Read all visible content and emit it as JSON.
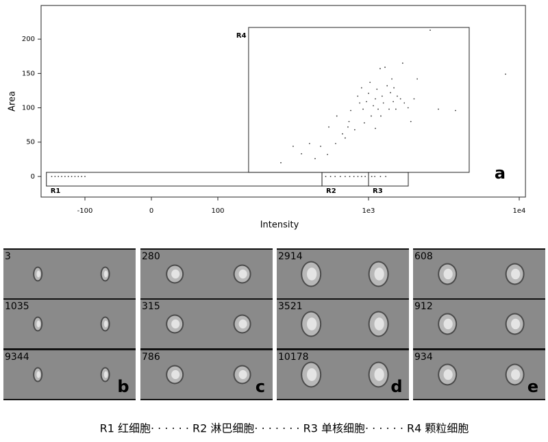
{
  "chart_data": {
    "type": "scatter",
    "xlabel": "Intensity",
    "ylabel": "Area",
    "panel_label": "a",
    "xscale": "biexponential",
    "xlim": [
      -166,
      11000
    ],
    "ylim": [
      -30,
      249
    ],
    "xticks": [
      -100,
      0,
      100,
      {
        "value": 1000,
        "label": "1e3"
      },
      {
        "value": 10000,
        "label": "1e4"
      }
    ],
    "yticks": [
      0,
      50,
      100,
      150,
      200
    ],
    "color": "#333333",
    "x": [
      2565,
      8110,
      262,
      316,
      359,
      406,
      442,
      481,
      534,
      605,
      672,
      730,
      545,
      616,
      700,
      742,
      762,
      810,
      848,
      874,
      899,
      920,
      938,
      969,
      1000,
      1023,
      1042,
      1076,
      1110,
      1110,
      1137,
      1158,
      1194,
      1207,
      1231,
      1255,
      1286,
      1329,
      1369,
      1398,
      1428,
      1459,
      1474,
      1518,
      1551,
      1630,
      1685,
      1728,
      1830,
      1909,
      2005,
      2105,
      2907,
      3776,
      -150,
      -145,
      -140,
      -135,
      -130,
      -125,
      -120,
      -115,
      -110,
      -105,
      -100,
      520,
      560,
      600,
      650,
      700,
      750,
      800,
      850,
      900,
      950,
      1050,
      1100,
      1200,
      1300
    ],
    "values": [
      213,
      149,
      20,
      44,
      33,
      48,
      26,
      44,
      32,
      48,
      62,
      72,
      72,
      88,
      56,
      80,
      96,
      68,
      117,
      107,
      129,
      98,
      78,
      109,
      121,
      137,
      88,
      103,
      70,
      113,
      127,
      98,
      157,
      88,
      117,
      107,
      159,
      132,
      98,
      122,
      142,
      109,
      129,
      98,
      117,
      113,
      165,
      107,
      100,
      80,
      113,
      142,
      98,
      96,
      0,
      0,
      0,
      0,
      0,
      0,
      0,
      0,
      0,
      0,
      0,
      0,
      0,
      0,
      0,
      0,
      0,
      0,
      0,
      0,
      0,
      0,
      0,
      0,
      0
    ],
    "regions": [
      {
        "label": "R1",
        "x": [
          -158,
          491
        ],
        "y": [
          -14,
          6
        ]
      },
      {
        "label": "R2",
        "x": [
          491,
          1000
        ],
        "y": [
          -14,
          6
        ]
      },
      {
        "label": "R3",
        "x": [
          1000,
          1835
        ],
        "y": [
          -14,
          6
        ]
      },
      {
        "label": "R4",
        "x": [
          160,
          4656
        ],
        "y": [
          6,
          217
        ]
      }
    ]
  },
  "panels": [
    {
      "label": "b",
      "images": [
        "3",
        "1035",
        "9344"
      ]
    },
    {
      "label": "c",
      "images": [
        "280",
        "315",
        "786"
      ]
    },
    {
      "label": "d",
      "images": [
        "2914",
        "3521",
        "10178"
      ]
    },
    {
      "label": "e",
      "images": [
        "608",
        "912",
        "934"
      ]
    }
  ],
  "caption": "R1 红细胞· · · · · · R2 淋巴细胞· · · · · · · R3 单核细胞· · · · · · R4 颗粒细胞"
}
